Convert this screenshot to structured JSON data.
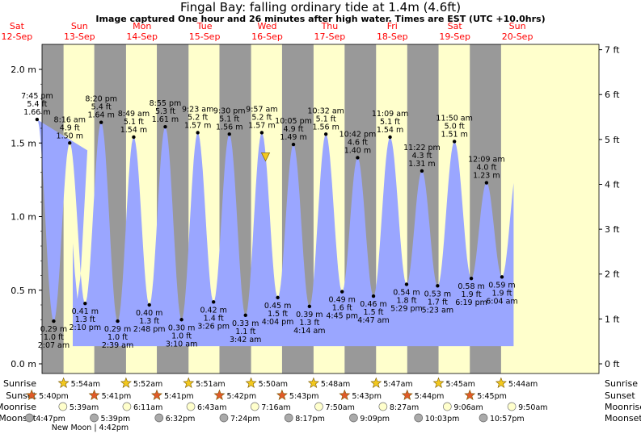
{
  "header": {
    "title": "Fingal Bay: falling  ordinary tide at 1.4m (4.6ft)",
    "subtitle": "Image captured One hour and 26 minutes after high water. Times are EST (UTC +10.0hrs)"
  },
  "colors": {
    "day": "#ffffcc",
    "night": "#999999",
    "tide": "#9aa6ff",
    "day_label": "#ff0000",
    "sun": "#f2c81e",
    "sunset": "#e05a28",
    "moonrise": "#ffffcc",
    "moonset": "#aaaaaa",
    "now_marker": "#f2c81e"
  },
  "row_labels": {
    "sunrise": "Sunrise",
    "sunset": "Sunset",
    "moonrise": "Moonrise",
    "moonset": "Moonset"
  },
  "chart_data": {
    "type": "area",
    "title": "Fingal Bay: falling  ordinary tide at 1.4m (4.6ft)",
    "xlabel": "",
    "ylabel": "",
    "ylim": [
      0,
      2.1
    ],
    "y_ticks_m": [
      "0.0 m",
      "0.5 m",
      "1.0 m",
      "1.5 m",
      "2.0 m"
    ],
    "y_ticks_ft": [
      "0 ft",
      "1 ft",
      "2 ft",
      "3 ft",
      "4 ft",
      "5 ft",
      "6 ft",
      "7 ft"
    ],
    "days": [
      {
        "dow": "Sat",
        "date": "12-Sep"
      },
      {
        "dow": "Sun",
        "date": "13-Sep"
      },
      {
        "dow": "Mon",
        "date": "14-Sep"
      },
      {
        "dow": "Tue",
        "date": "15-Sep"
      },
      {
        "dow": "Wed",
        "date": "16-Sep"
      },
      {
        "dow": "Thu",
        "date": "17-Sep"
      },
      {
        "dow": "Fri",
        "date": "18-Sep"
      },
      {
        "dow": "Sat",
        "date": "19-Sep"
      },
      {
        "dow": "Sun",
        "date": "20-Sep"
      }
    ],
    "tides": [
      {
        "type": "high",
        "day": 0,
        "time": "7:45 pm",
        "m": 1.66,
        "ft": "5.4 ft",
        "m_label": "1.66 m"
      },
      {
        "type": "low",
        "day": 1,
        "time": "2:07 am",
        "m": 0.29,
        "ft": "1.0 ft",
        "m_label": "0.29 m"
      },
      {
        "type": "high",
        "day": 1,
        "time": "8:16 am",
        "m": 1.5,
        "ft": "4.9 ft",
        "m_label": "1.50 m"
      },
      {
        "type": "low",
        "day": 1,
        "time": "2:10 pm",
        "m": 0.41,
        "ft": "1.3 ft",
        "m_label": "0.41 m"
      },
      {
        "type": "high",
        "day": 1,
        "time": "8:20 pm",
        "m": 1.64,
        "ft": "5.4 ft",
        "m_label": "1.64 m"
      },
      {
        "type": "low",
        "day": 2,
        "time": "2:39 am",
        "m": 0.29,
        "ft": "1.0 ft",
        "m_label": "0.29 m"
      },
      {
        "type": "high",
        "day": 2,
        "time": "8:49 am",
        "m": 1.54,
        "ft": "5.1 ft",
        "m_label": "1.54 m"
      },
      {
        "type": "low",
        "day": 2,
        "time": "2:48 pm",
        "m": 0.4,
        "ft": "1.3 ft",
        "m_label": "0.40 m"
      },
      {
        "type": "high",
        "day": 2,
        "time": "8:55 pm",
        "m": 1.61,
        "ft": "5.3 ft",
        "m_label": "1.61 m"
      },
      {
        "type": "low",
        "day": 3,
        "time": "3:10 am",
        "m": 0.3,
        "ft": "1.0 ft",
        "m_label": "0.30 m"
      },
      {
        "type": "high",
        "day": 3,
        "time": "9:23 am",
        "m": 1.57,
        "ft": "5.2 ft",
        "m_label": "1.57 m"
      },
      {
        "type": "low",
        "day": 3,
        "time": "3:26 pm",
        "m": 0.42,
        "ft": "1.4 ft",
        "m_label": "0.42 m"
      },
      {
        "type": "high",
        "day": 3,
        "time": "9:30 pm",
        "m": 1.56,
        "ft": "5.1 ft",
        "m_label": "1.56 m"
      },
      {
        "type": "low",
        "day": 4,
        "time": "3:42 am",
        "m": 0.33,
        "ft": "1.1 ft",
        "m_label": "0.33 m"
      },
      {
        "type": "high",
        "day": 4,
        "time": "9:57 am",
        "m": 1.57,
        "ft": "5.2 ft",
        "m_label": "1.57 m"
      },
      {
        "type": "low",
        "day": 4,
        "time": "4:04 pm",
        "m": 0.45,
        "ft": "1.5 ft",
        "m_label": "0.45 m"
      },
      {
        "type": "high",
        "day": 4,
        "time": "10:05 pm",
        "m": 1.49,
        "ft": "4.9 ft",
        "m_label": "1.49 m"
      },
      {
        "type": "low",
        "day": 5,
        "time": "4:14 am",
        "m": 0.39,
        "ft": "1.3 ft",
        "m_label": "0.39 m"
      },
      {
        "type": "high",
        "day": 5,
        "time": "10:32 am",
        "m": 1.56,
        "ft": "5.1 ft",
        "m_label": "1.56 m"
      },
      {
        "type": "low",
        "day": 5,
        "time": "4:45 pm",
        "m": 0.49,
        "ft": "1.6 ft",
        "m_label": "0.49 m"
      },
      {
        "type": "high",
        "day": 5,
        "time": "10:42 pm",
        "m": 1.4,
        "ft": "4.6 ft",
        "m_label": "1.40 m"
      },
      {
        "type": "low",
        "day": 6,
        "time": "4:47 am",
        "m": 0.46,
        "ft": "1.5 ft",
        "m_label": "0.46 m"
      },
      {
        "type": "high",
        "day": 6,
        "time": "11:09 am",
        "m": 1.54,
        "ft": "5.1 ft",
        "m_label": "1.54 m"
      },
      {
        "type": "low",
        "day": 6,
        "time": "5:29 pm",
        "m": 0.54,
        "ft": "1.8 ft",
        "m_label": "0.54 m"
      },
      {
        "type": "high",
        "day": 6,
        "time": "11:22 pm",
        "m": 1.31,
        "ft": "4.3 ft",
        "m_label": "1.31 m"
      },
      {
        "type": "low",
        "day": 7,
        "time": "5:23 am",
        "m": 0.53,
        "ft": "1.7 ft",
        "m_label": "0.53 m"
      },
      {
        "type": "high",
        "day": 7,
        "time": "11:50 am",
        "m": 1.51,
        "ft": "5.0 ft",
        "m_label": "1.51 m"
      },
      {
        "type": "low",
        "day": 7,
        "time": "6:19 pm",
        "m": 0.58,
        "ft": "1.9 ft",
        "m_label": "0.58 m"
      },
      {
        "type": "high",
        "day": 8,
        "time": "12:09 am",
        "m": 1.23,
        "ft": "4.0 ft",
        "m_label": "1.23 m"
      },
      {
        "type": "low",
        "day": 8,
        "time": "6:04 am",
        "m": 0.59,
        "ft": "1.9 ft",
        "m_label": "0.59 m"
      }
    ],
    "sun": [
      {
        "day": 0,
        "sunrise": null,
        "sunset": "5:40pm"
      },
      {
        "day": 1,
        "sunrise": "5:54am",
        "sunset": "5:41pm"
      },
      {
        "day": 2,
        "sunrise": "5:52am",
        "sunset": "5:41pm"
      },
      {
        "day": 3,
        "sunrise": "5:51am",
        "sunset": "5:42pm"
      },
      {
        "day": 4,
        "sunrise": "5:50am",
        "sunset": "5:43pm"
      },
      {
        "day": 5,
        "sunrise": "5:48am",
        "sunset": "5:43pm"
      },
      {
        "day": 6,
        "sunrise": "5:47am",
        "sunset": "5:44pm"
      },
      {
        "day": 7,
        "sunrise": "5:45am",
        "sunset": "5:45pm"
      },
      {
        "day": 8,
        "sunrise": "5:44am",
        "sunset": null
      }
    ],
    "moonrise": [
      {
        "day": 1,
        "time": "5:39am"
      },
      {
        "day": 2,
        "time": "6:11am"
      },
      {
        "day": 3,
        "time": "6:43am"
      },
      {
        "day": 4,
        "time": "7:16am"
      },
      {
        "day": 5,
        "time": "7:50am"
      },
      {
        "day": 6,
        "time": "8:27am"
      },
      {
        "day": 7,
        "time": "9:06am"
      },
      {
        "day": 8,
        "time": "9:50am"
      }
    ],
    "moonset": [
      {
        "day": 0,
        "time": "4:47pm"
      },
      {
        "day": 1,
        "time": "5:39pm"
      },
      {
        "day": 2,
        "time": "6:32pm"
      },
      {
        "day": 3,
        "time": "7:24pm"
      },
      {
        "day": 4,
        "time": "8:17pm"
      },
      {
        "day": 5,
        "time": "9:09pm"
      },
      {
        "day": 6,
        "time": "10:03pm"
      },
      {
        "day": 7,
        "time": "10:57pm"
      }
    ],
    "moon_phase": {
      "label": "New Moon",
      "time": "4:42pm"
    },
    "now": {
      "day": 4,
      "time": "11:23 am",
      "m": 1.4
    }
  }
}
